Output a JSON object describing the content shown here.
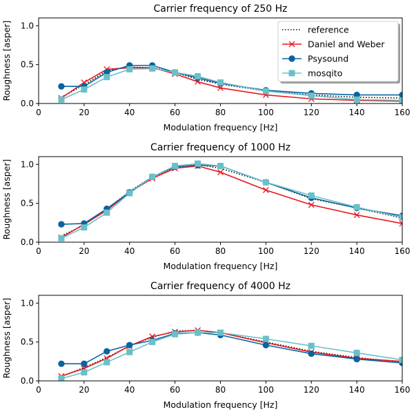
{
  "figure": {
    "background": "#ffffff"
  },
  "legend": {
    "placement": "upper-right",
    "entries": [
      {
        "name": "reference",
        "color": "#000000",
        "style": "dotted",
        "marker": "none"
      },
      {
        "name": "Daniel and Weber",
        "color": "#e8141c",
        "style": "solid",
        "marker": "x"
      },
      {
        "name": "Psysound",
        "color": "#0a64a0",
        "style": "solid",
        "marker": "circle"
      },
      {
        "name": "mosqito",
        "color": "#69c0c8",
        "style": "solid",
        "marker": "square"
      }
    ]
  },
  "chart_data": [
    {
      "type": "line",
      "title": "Carrier frequency of 250 Hz",
      "xlabel": "Modulation frequency [Hz]",
      "ylabel": "Roughness [asper]",
      "xlim": [
        0,
        160
      ],
      "ylim": [
        0,
        1.1
      ],
      "xticks": [
        0,
        20,
        40,
        60,
        80,
        100,
        120,
        140,
        160
      ],
      "yticks": [
        0.0,
        0.5,
        1.0
      ],
      "ytick_labels": [
        "0.0",
        "0.5",
        "1.0"
      ],
      "grid": false,
      "legend": true,
      "x": [
        10,
        20,
        30,
        40,
        50,
        60,
        70,
        80,
        100,
        120,
        140,
        160
      ],
      "series": [
        {
          "name": "reference",
          "values": [
            0.08,
            0.24,
            0.42,
            0.47,
            0.46,
            0.4,
            0.31,
            0.25,
            0.16,
            0.11,
            0.08,
            0.07
          ]
        },
        {
          "name": "Daniel and Weber",
          "values": [
            0.07,
            0.27,
            0.44,
            0.46,
            0.46,
            0.38,
            0.28,
            0.2,
            0.11,
            0.06,
            0.04,
            0.03
          ]
        },
        {
          "name": "Psysound",
          "values": [
            0.22,
            0.22,
            0.4,
            0.49,
            0.49,
            0.4,
            0.33,
            0.26,
            0.17,
            0.13,
            0.11,
            0.11
          ]
        },
        {
          "name": "mosqito",
          "values": [
            0.05,
            0.18,
            0.34,
            0.44,
            0.45,
            0.4,
            0.35,
            0.27,
            0.16,
            0.1,
            0.05,
            0.04
          ]
        }
      ]
    },
    {
      "type": "line",
      "title": "Carrier frequency of 1000 Hz",
      "xlabel": "Modulation frequency [Hz]",
      "ylabel": "Roughness [asper]",
      "xlim": [
        0,
        160
      ],
      "ylim": [
        0,
        1.1
      ],
      "xticks": [
        0,
        20,
        40,
        60,
        80,
        100,
        120,
        140,
        160
      ],
      "yticks": [
        0.0,
        0.5,
        1.0
      ],
      "ytick_labels": [
        "0.0",
        "0.5",
        "1.0"
      ],
      "grid": false,
      "legend": false,
      "x": [
        10,
        20,
        30,
        40,
        50,
        60,
        70,
        80,
        100,
        120,
        140,
        160
      ],
      "series": [
        {
          "name": "reference",
          "values": [
            0.08,
            0.22,
            0.43,
            0.65,
            0.84,
            0.96,
            1.0,
            0.95,
            0.77,
            0.56,
            0.44,
            0.31
          ]
        },
        {
          "name": "Daniel and Weber",
          "values": [
            0.06,
            0.23,
            0.41,
            0.64,
            0.82,
            0.95,
            0.98,
            0.9,
            0.67,
            0.48,
            0.35,
            0.24
          ]
        },
        {
          "name": "Psysound",
          "values": [
            0.23,
            0.24,
            0.43,
            0.64,
            0.84,
            0.97,
            0.99,
            0.98,
            0.77,
            0.57,
            0.44,
            0.34
          ]
        },
        {
          "name": "mosqito",
          "values": [
            0.05,
            0.19,
            0.38,
            0.63,
            0.84,
            0.98,
            1.01,
            0.98,
            0.77,
            0.6,
            0.45,
            0.32
          ]
        }
      ]
    },
    {
      "type": "line",
      "title": "Carrier frequency of 4000 Hz",
      "xlabel": "Modulation frequency [Hz]",
      "ylabel": "Roughness [asper]",
      "xlim": [
        0,
        160
      ],
      "ylim": [
        0,
        1.1
      ],
      "xticks": [
        0,
        20,
        40,
        60,
        80,
        100,
        120,
        140,
        160
      ],
      "yticks": [
        0.0,
        0.5,
        1.0
      ],
      "ytick_labels": [
        "0.0",
        "0.5",
        "1.0"
      ],
      "grid": false,
      "legend": false,
      "x": [
        10,
        20,
        30,
        40,
        50,
        60,
        70,
        80,
        100,
        120,
        140,
        160
      ],
      "series": [
        {
          "name": "reference",
          "values": [
            0.06,
            0.17,
            0.3,
            0.45,
            0.56,
            0.64,
            0.65,
            0.62,
            0.5,
            0.38,
            0.3,
            0.24
          ]
        },
        {
          "name": "Daniel and Weber",
          "values": [
            0.06,
            0.16,
            0.29,
            0.45,
            0.57,
            0.63,
            0.65,
            0.62,
            0.49,
            0.37,
            0.29,
            0.25
          ]
        },
        {
          "name": "Psysound",
          "values": [
            0.22,
            0.22,
            0.38,
            0.46,
            0.52,
            0.61,
            0.62,
            0.59,
            0.46,
            0.35,
            0.28,
            0.23
          ]
        },
        {
          "name": "mosqito",
          "values": [
            0.03,
            0.11,
            0.24,
            0.37,
            0.5,
            0.6,
            0.62,
            0.62,
            0.54,
            0.45,
            0.36,
            0.27
          ]
        }
      ]
    }
  ]
}
